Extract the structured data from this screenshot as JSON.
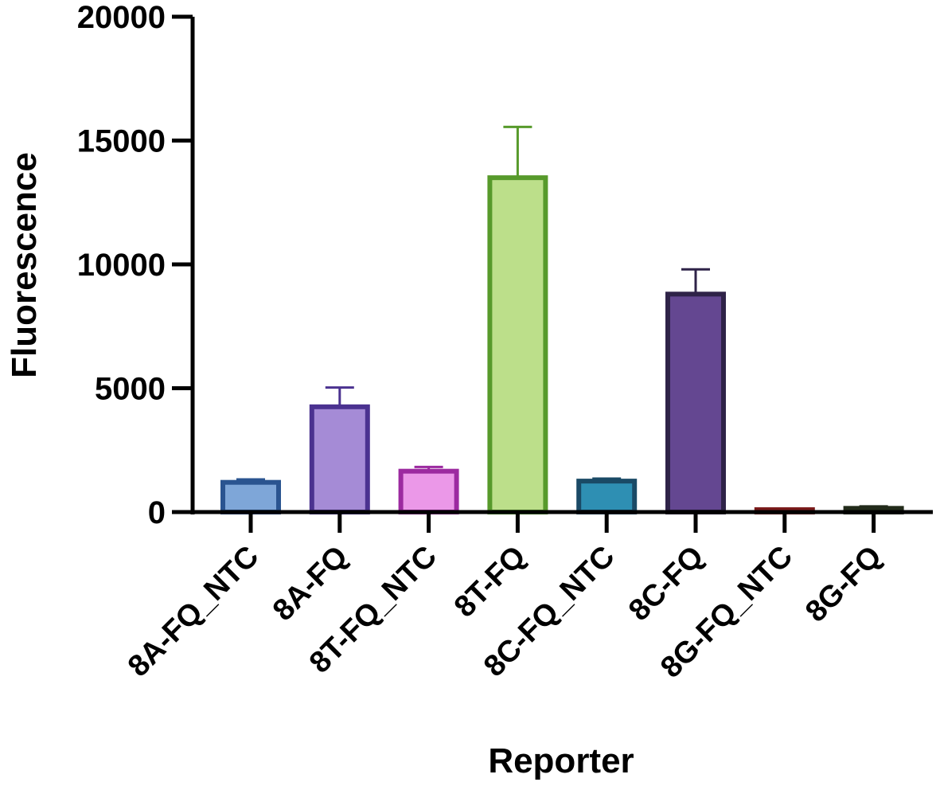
{
  "chart_data": {
    "type": "bar",
    "title": "",
    "xlabel": "Reporter",
    "ylabel": "Fluorescence",
    "ylim": [
      0,
      20000
    ],
    "yticks": [
      0,
      5000,
      10000,
      15000,
      20000
    ],
    "yticks_display": [
      "0",
      "5000",
      "10000",
      "15000",
      "20000"
    ],
    "grid": false,
    "legend": "none",
    "categories": [
      "8A-FQ_NTC",
      "8A-FQ",
      "8T-FQ_NTC",
      "8T-FQ",
      "8C-FQ_NTC",
      "8C-FQ",
      "8G-FQ_NTC",
      "8G-FQ"
    ],
    "values": [
      1200,
      4250,
      1650,
      13500,
      1250,
      8800,
      40,
      150
    ],
    "errors": [
      120,
      780,
      170,
      2050,
      100,
      1000,
      40,
      80
    ],
    "fill_colors": [
      "#7ea6d8",
      "#a58bd6",
      "#eb98e8",
      "#bcdf8a",
      "#2e8fb3",
      "#644791",
      "#c5303a",
      "#4d6b33"
    ],
    "edge_colors": [
      "#2a5490",
      "#4b3290",
      "#9c2aa0",
      "#579a2b",
      "#1a4a66",
      "#2f2348",
      "#7a1a1a",
      "#222b1a"
    ]
  }
}
